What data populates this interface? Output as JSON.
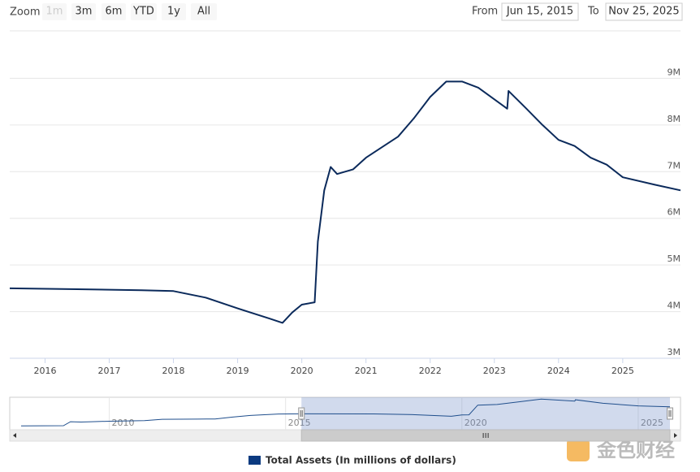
{
  "toolbar": {
    "zoom_label": "Zoom",
    "buttons": [
      "1m",
      "3m",
      "6m",
      "YTD",
      "1y",
      "All"
    ],
    "from_label": "From",
    "from_value": "Jun 15, 2015",
    "to_label": "To",
    "to_value": "Nov 25, 2025"
  },
  "chart_data": {
    "type": "line",
    "x": [
      2015.45,
      2016.5,
      2017.5,
      2018.0,
      2018.5,
      2019.0,
      2019.5,
      2019.7,
      2019.85,
      2020.0,
      2020.2,
      2020.25,
      2020.35,
      2020.45,
      2020.55,
      2020.8,
      2021.0,
      2021.5,
      2021.75,
      2022.0,
      2022.25,
      2022.5,
      2022.75,
      2023.0,
      2023.2,
      2023.22,
      2023.5,
      2023.75,
      2024.0,
      2024.25,
      2024.5,
      2024.75,
      2025.0,
      2025.5,
      2025.9
    ],
    "series": [
      {
        "name": "Total Assets (In millions of dollars)",
        "color": "#0b2a5b",
        "values": [
          4500000,
          4480000,
          4460000,
          4440000,
          4300000,
          4070000,
          3850000,
          3760000,
          3980000,
          4150000,
          4200000,
          5500000,
          6600000,
          7100000,
          6950000,
          7050000,
          7300000,
          7750000,
          8150000,
          8600000,
          8930000,
          8930000,
          8800000,
          8550000,
          8350000,
          8730000,
          8350000,
          8000000,
          7680000,
          7550000,
          7300000,
          7150000,
          6880000,
          6720000,
          6600000
        ]
      }
    ],
    "xlim": [
      2015.45,
      2025.9
    ],
    "xticks": [
      2016,
      2017,
      2018,
      2019,
      2020,
      2021,
      2022,
      2023,
      2024,
      2025
    ],
    "ylim": [
      3000000,
      10000000
    ],
    "yticks": [
      {
        "value": 3000000,
        "label": "3M"
      },
      {
        "value": 4000000,
        "label": "4M"
      },
      {
        "value": 5000000,
        "label": "5M"
      },
      {
        "value": 6000000,
        "label": "6M"
      },
      {
        "value": 7000000,
        "label": "7M"
      },
      {
        "value": 8000000,
        "label": "8M"
      },
      {
        "value": 9000000,
        "label": "9M"
      }
    ],
    "grid": true
  },
  "navigator": {
    "x": [
      2007.5,
      2008.7,
      2008.9,
      2009.2,
      2009.5,
      2010.0,
      2011.0,
      2011.5,
      2012.5,
      2013.0,
      2013.5,
      2014.0,
      2014.8,
      2015.5,
      2017.5,
      2018.5,
      2019.7,
      2020.0,
      2020.2,
      2020.45,
      2021.0,
      2022.25,
      2023.2,
      2023.22,
      2024.0,
      2025.0,
      2025.9
    ],
    "values": [
      870000,
      900000,
      2100000,
      2000000,
      2100000,
      2250000,
      2450000,
      2850000,
      2900000,
      2950000,
      3500000,
      4000000,
      4450000,
      4500000,
      4460000,
      4300000,
      3760000,
      4150000,
      4200000,
      7100000,
      7300000,
      8930000,
      8350000,
      8730000,
      7680000,
      6880000,
      6600000
    ],
    "xlim": [
      2007.5,
      2025.9
    ],
    "ylim": [
      0,
      9000000
    ],
    "xticks": [
      2010,
      2015,
      2020,
      2025
    ]
  },
  "watermark": "金色财经"
}
